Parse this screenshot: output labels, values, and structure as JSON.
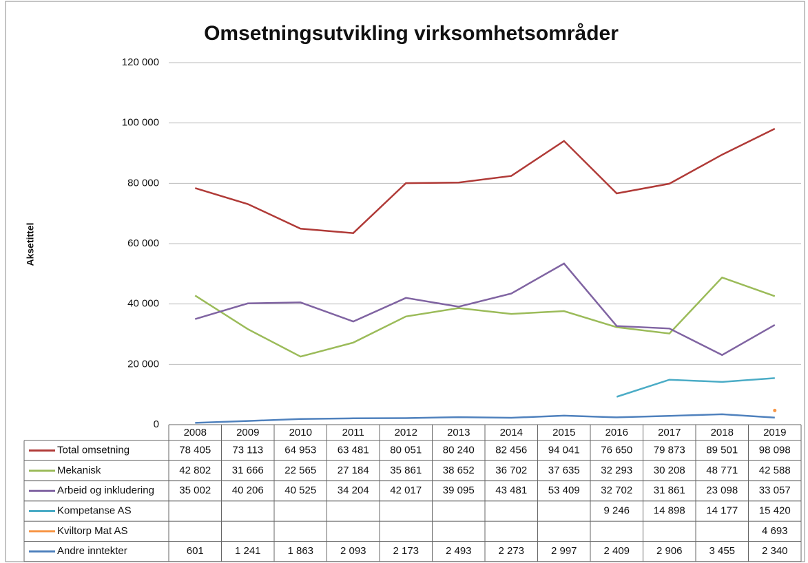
{
  "chart_data": {
    "type": "line",
    "title": "Omsetningsutvikling virksomhetsområder",
    "y_label": "Aksetittel",
    "categories": [
      "2008",
      "2009",
      "2010",
      "2011",
      "2012",
      "2013",
      "2014",
      "2015",
      "2016",
      "2017",
      "2018",
      "2019"
    ],
    "ylim": [
      0,
      120000
    ],
    "yticks": [
      0,
      {
        "value": 20000,
        "label": "20 000"
      },
      {
        "value": 40000,
        "label": "40 000"
      },
      {
        "value": 60000,
        "label": "60 000"
      },
      {
        "value": 80000,
        "label": "80 000"
      },
      {
        "value": 100000,
        "label": "100 000"
      },
      {
        "value": 120000,
        "label": "120 000"
      }
    ],
    "grid": true,
    "series": [
      {
        "name": "Total omsetning",
        "color": "#b03a37",
        "values": [
          78405,
          73113,
          64953,
          63481,
          80051,
          80240,
          82456,
          94041,
          76650,
          79873,
          89501,
          98098
        ],
        "value_labels": [
          "78 405",
          "73 113",
          "64 953",
          "63 481",
          "80 051",
          "80 240",
          "82 456",
          "94 041",
          "76 650",
          "79 873",
          "89 501",
          "98 098"
        ]
      },
      {
        "name": "Mekanisk",
        "color": "#9bbb59",
        "values": [
          42802,
          31666,
          22565,
          27184,
          35861,
          38652,
          36702,
          37635,
          32293,
          30208,
          48771,
          42588
        ],
        "value_labels": [
          "42 802",
          "31 666",
          "22 565",
          "27 184",
          "35 861",
          "38 652",
          "36 702",
          "37 635",
          "32 293",
          "30 208",
          "48 771",
          "42 588"
        ]
      },
      {
        "name": "Arbeid og inkludering",
        "color": "#8064a2",
        "values": [
          35002,
          40206,
          40525,
          34204,
          42017,
          39095,
          43481,
          53409,
          32702,
          31861,
          23098,
          33057
        ],
        "value_labels": [
          "35 002",
          "40 206",
          "40 525",
          "34 204",
          "42 017",
          "39 095",
          "43 481",
          "53 409",
          "32 702",
          "31 861",
          "23 098",
          "33 057"
        ]
      },
      {
        "name": "Kompetanse AS",
        "color": "#4bacc6",
        "values": [
          null,
          null,
          null,
          null,
          null,
          null,
          null,
          null,
          9246,
          14898,
          14177,
          15420
        ],
        "value_labels": [
          null,
          null,
          null,
          null,
          null,
          null,
          null,
          null,
          "9 246",
          "14 898",
          "14 177",
          "15 420"
        ]
      },
      {
        "name": "Kviltorp Mat AS",
        "color": "#f79646",
        "values": [
          null,
          null,
          null,
          null,
          null,
          null,
          null,
          null,
          null,
          null,
          null,
          4693
        ],
        "value_labels": [
          null,
          null,
          null,
          null,
          null,
          null,
          null,
          null,
          null,
          null,
          null,
          "4 693"
        ]
      },
      {
        "name": "Andre inntekter",
        "color": "#4f81bd",
        "values": [
          601,
          1241,
          1863,
          2093,
          2173,
          2493,
          2273,
          2997,
          2409,
          2906,
          3455,
          2340
        ],
        "value_labels": [
          "601",
          "1 241",
          "1 863",
          "2 093",
          "2 173",
          "2 493",
          "2 273",
          "2 997",
          "2 409",
          "2 906",
          "3 455",
          "2 340"
        ]
      }
    ]
  }
}
